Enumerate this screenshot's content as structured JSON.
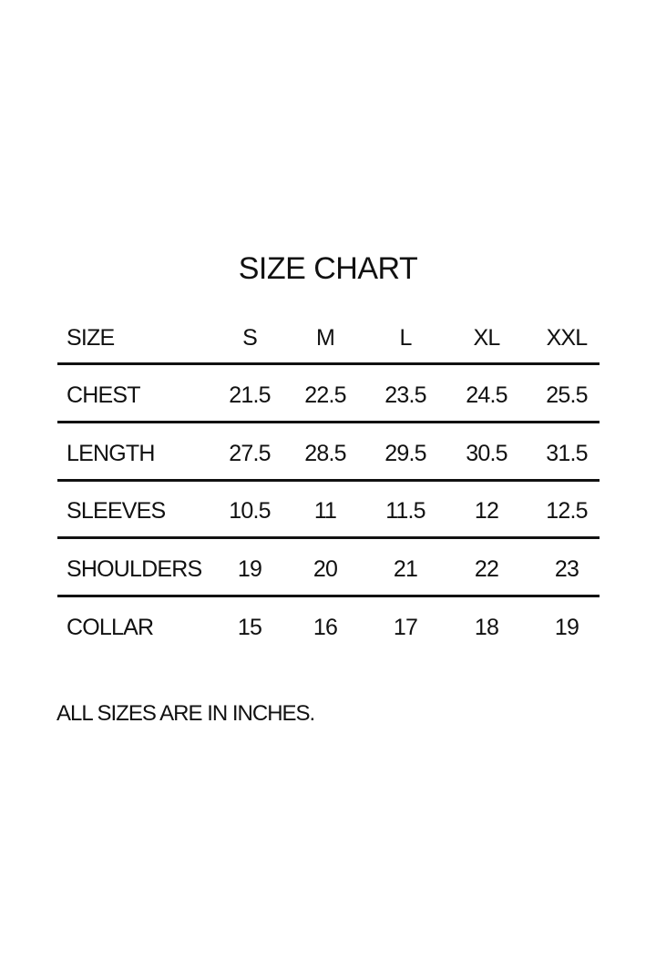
{
  "title": "SIZE CHART",
  "table": {
    "header": {
      "label": "SIZE",
      "sizes": [
        "S",
        "M",
        "L",
        "XL",
        "XXL"
      ]
    },
    "rows": [
      {
        "label": "CHEST",
        "values": [
          "21.5",
          "22.5",
          "23.5",
          "24.5",
          "25.5"
        ]
      },
      {
        "label": "LENGTH",
        "values": [
          "27.5",
          "28.5",
          "29.5",
          "30.5",
          "31.5"
        ]
      },
      {
        "label": "SLEEVES",
        "values": [
          "10.5",
          "11",
          "11.5",
          "12",
          "12.5"
        ]
      },
      {
        "label": "SHOULDERS",
        "values": [
          "19",
          "20",
          "21",
          "22",
          "23"
        ]
      },
      {
        "label": "COLLAR",
        "values": [
          "15",
          "16",
          "17",
          "18",
          "19"
        ]
      }
    ]
  },
  "note": "ALL SIZES ARE IN INCHES."
}
